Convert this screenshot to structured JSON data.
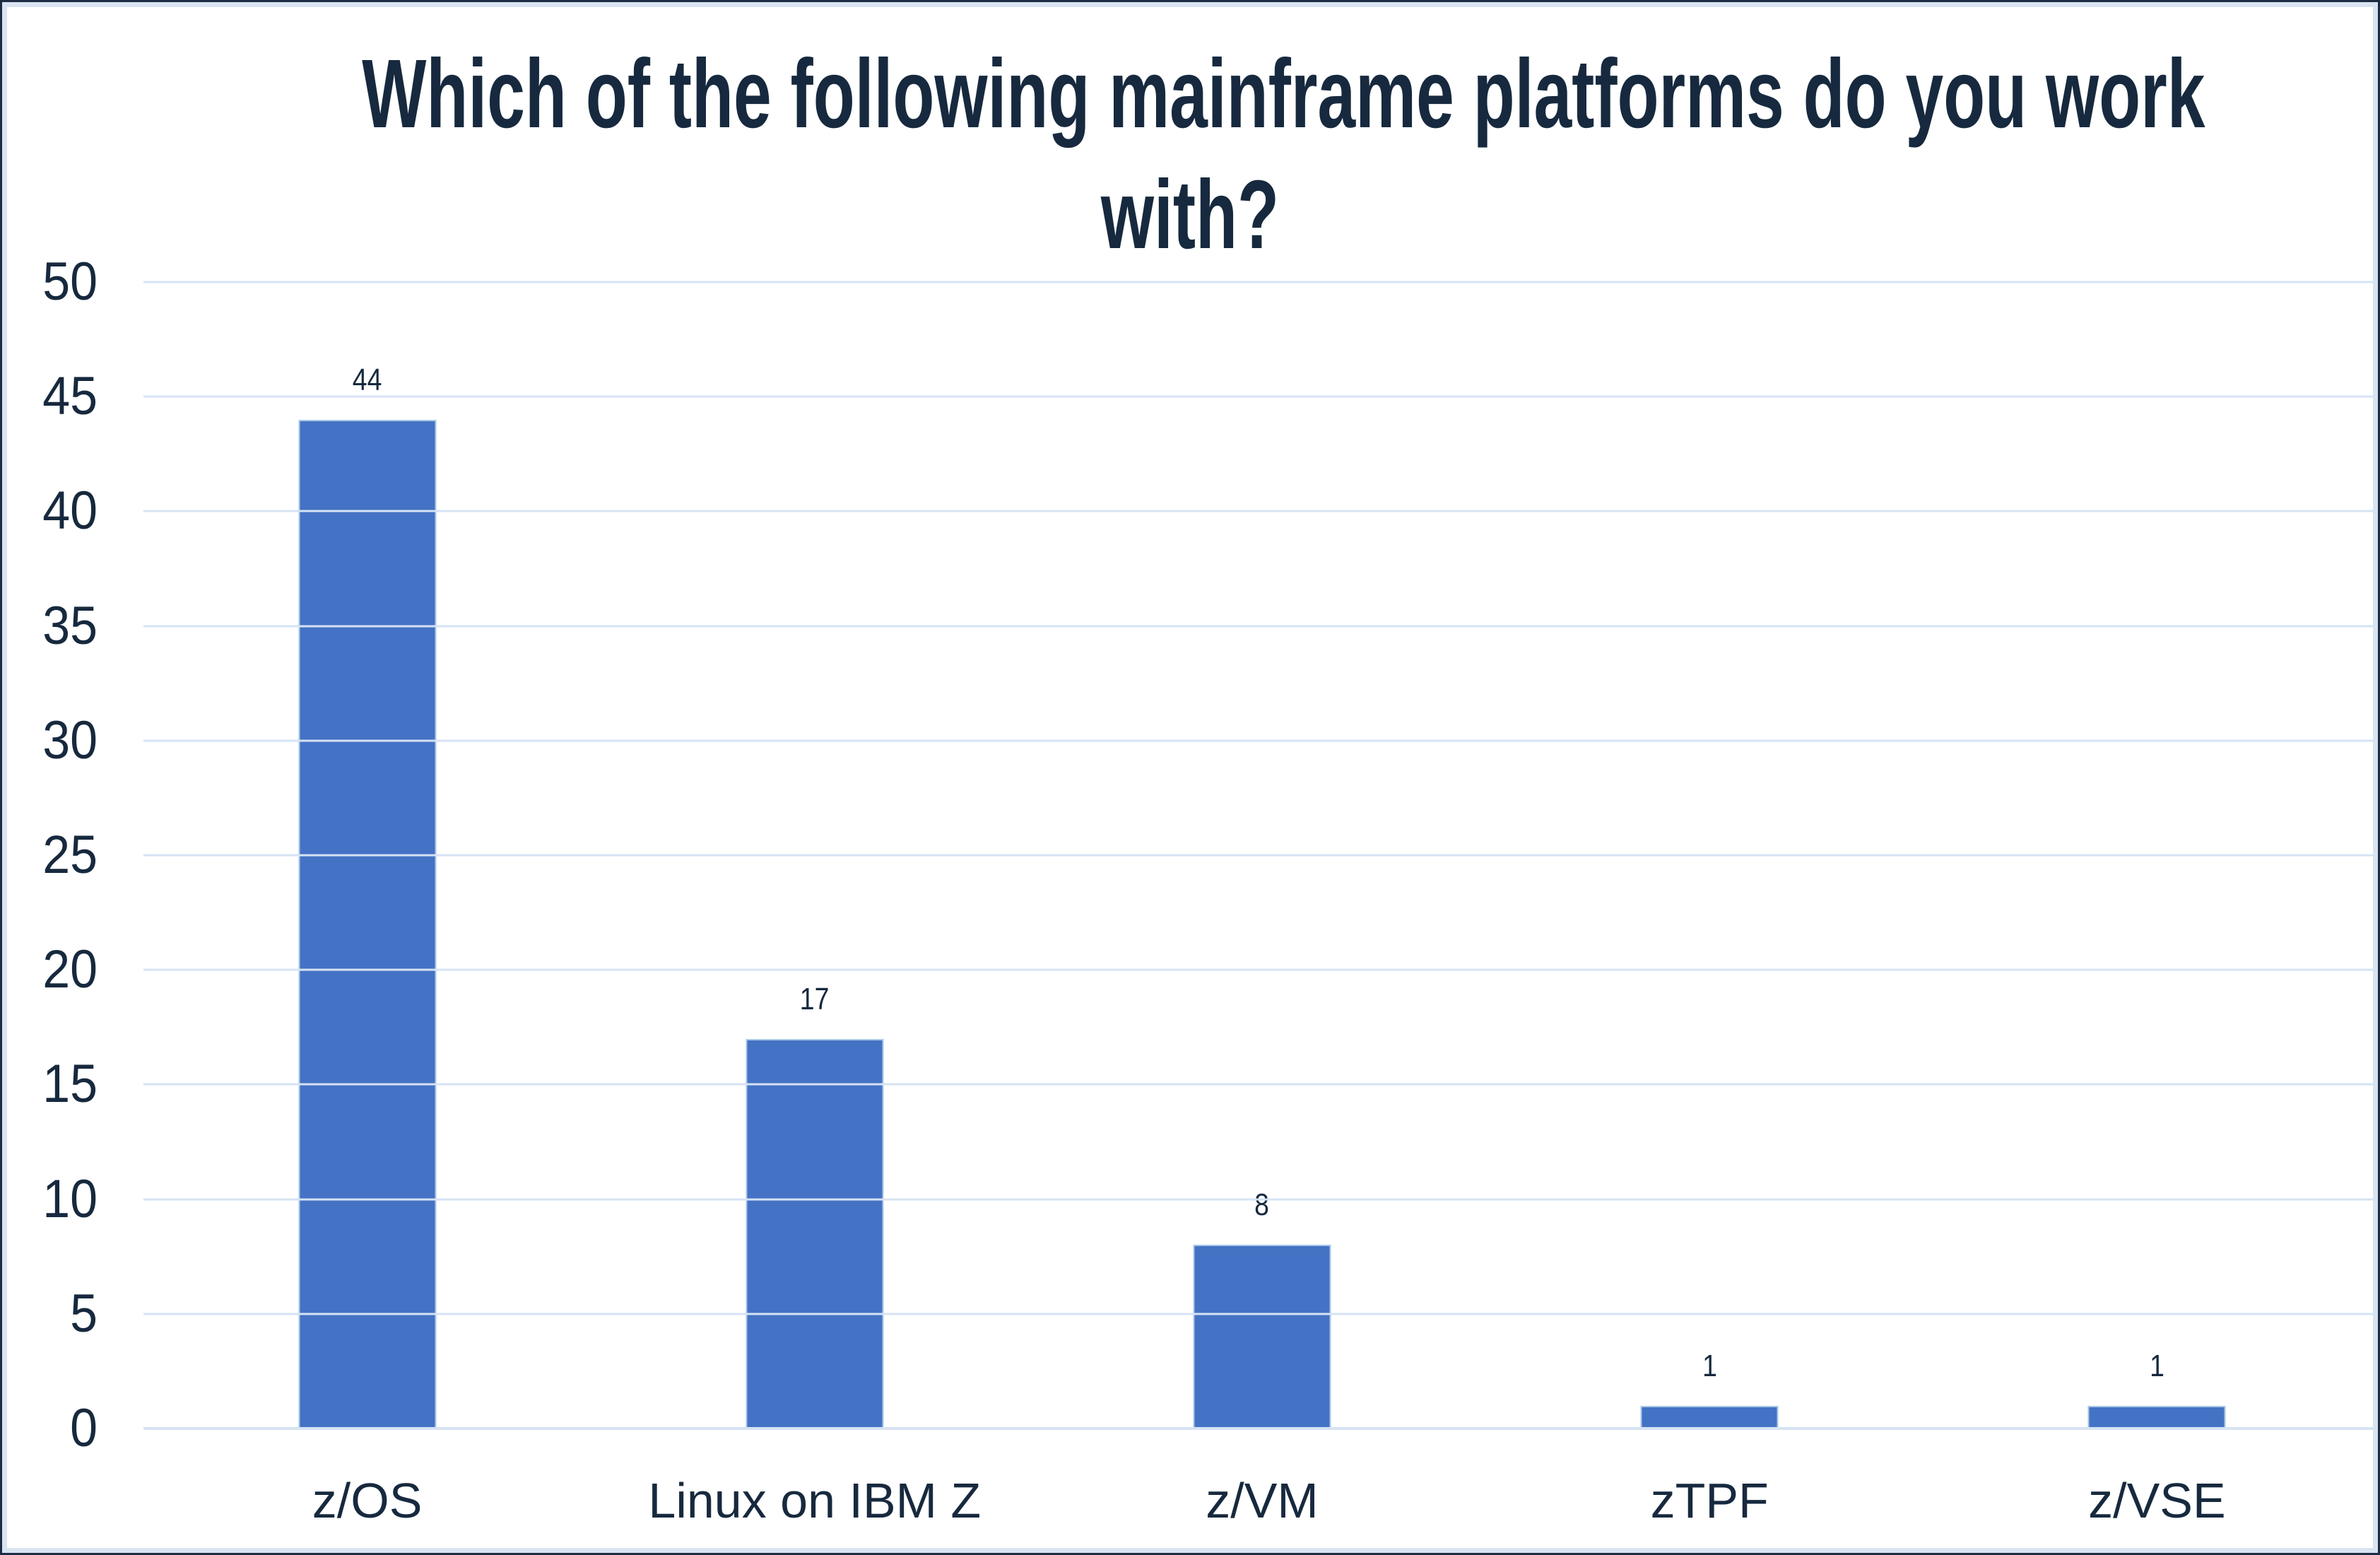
{
  "chart_data": {
    "type": "bar",
    "title": "Which of the following mainframe platforms do you work with?",
    "title_lines": [
      "Which of the following mainframe platforms do you work",
      "with?"
    ],
    "categories": [
      "z/OS",
      "Linux on IBM Z",
      "z/VM",
      "zTPF",
      "z/VSE"
    ],
    "values": [
      44,
      17,
      8,
      1,
      1
    ],
    "xlabel": "",
    "ylabel": "",
    "ylim": [
      0,
      50
    ],
    "yticks": [
      0,
      5,
      10,
      15,
      20,
      25,
      30,
      35,
      40,
      45,
      50
    ],
    "grid": true,
    "legend": false,
    "colors": {
      "bar_fill": "#4472C4",
      "bar_border": "#A9C7E9",
      "text": "#17293E",
      "gridline": "#D6E3F4",
      "frame_outer": "#1D2C42",
      "frame_inner": "#D9E4F3",
      "background": "#FFFFFF"
    }
  }
}
